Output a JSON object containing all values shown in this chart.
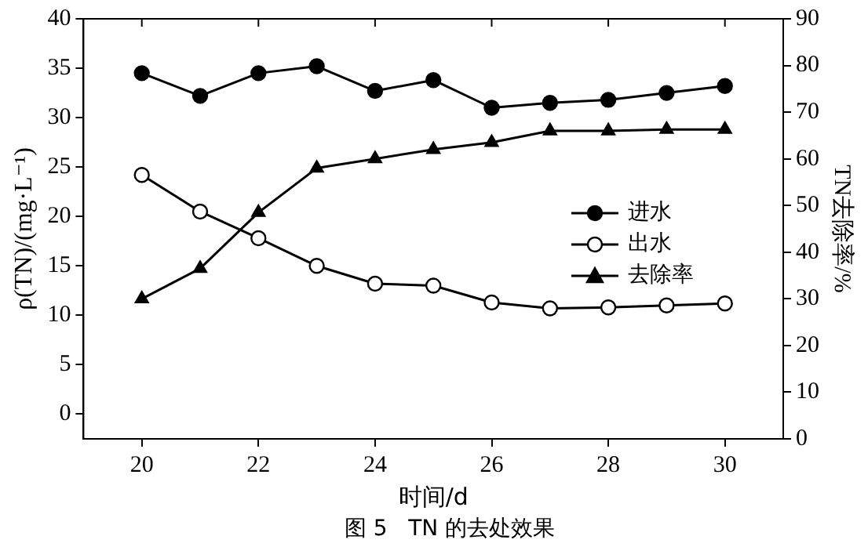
{
  "chart_data": {
    "type": "line",
    "xlabel": "时间/d",
    "ylabel": "ρ(TN)/(mg·L⁻¹)",
    "y2label": "TN去除率/%",
    "annotations": [
      "图 5   TN 的去处效果"
    ],
    "x": [
      20,
      21,
      22,
      23,
      24,
      25,
      26,
      27,
      28,
      29,
      30
    ],
    "xlim": [
      19,
      31
    ],
    "xticks": [
      20,
      22,
      24,
      26,
      28,
      30
    ],
    "ylim": [
      -2.5,
      40
    ],
    "yticks": [
      0,
      5,
      10,
      15,
      20,
      25,
      30,
      35,
      40
    ],
    "y2lim": [
      0,
      90
    ],
    "y2ticks": [
      0,
      10,
      20,
      30,
      40,
      50,
      60,
      70,
      80,
      90
    ],
    "grid": false,
    "legend": "right",
    "line_style": "solid",
    "series": [
      {
        "name": "进水",
        "color": "#000000",
        "marker": "circle",
        "values": [
          34.5,
          32.2,
          34.5,
          35.2,
          32.7,
          33.8,
          31,
          31.5,
          31.8,
          32.5,
          33.2
        ]
      },
      {
        "name": "出水",
        "color": "#000000",
        "marker": "circle",
        "values": [
          24.2,
          20.5,
          17.8,
          15,
          13.2,
          13,
          11.3,
          10.7,
          10.8,
          11,
          11.2
        ]
      },
      {
        "name": "去除率",
        "color": "#000000",
        "marker": "triangle",
        "axis": "y2",
        "values": [
          30,
          36.5,
          48.5,
          58,
          60,
          62,
          63.5,
          66,
          66,
          66.3,
          66.3
        ]
      }
    ]
  }
}
